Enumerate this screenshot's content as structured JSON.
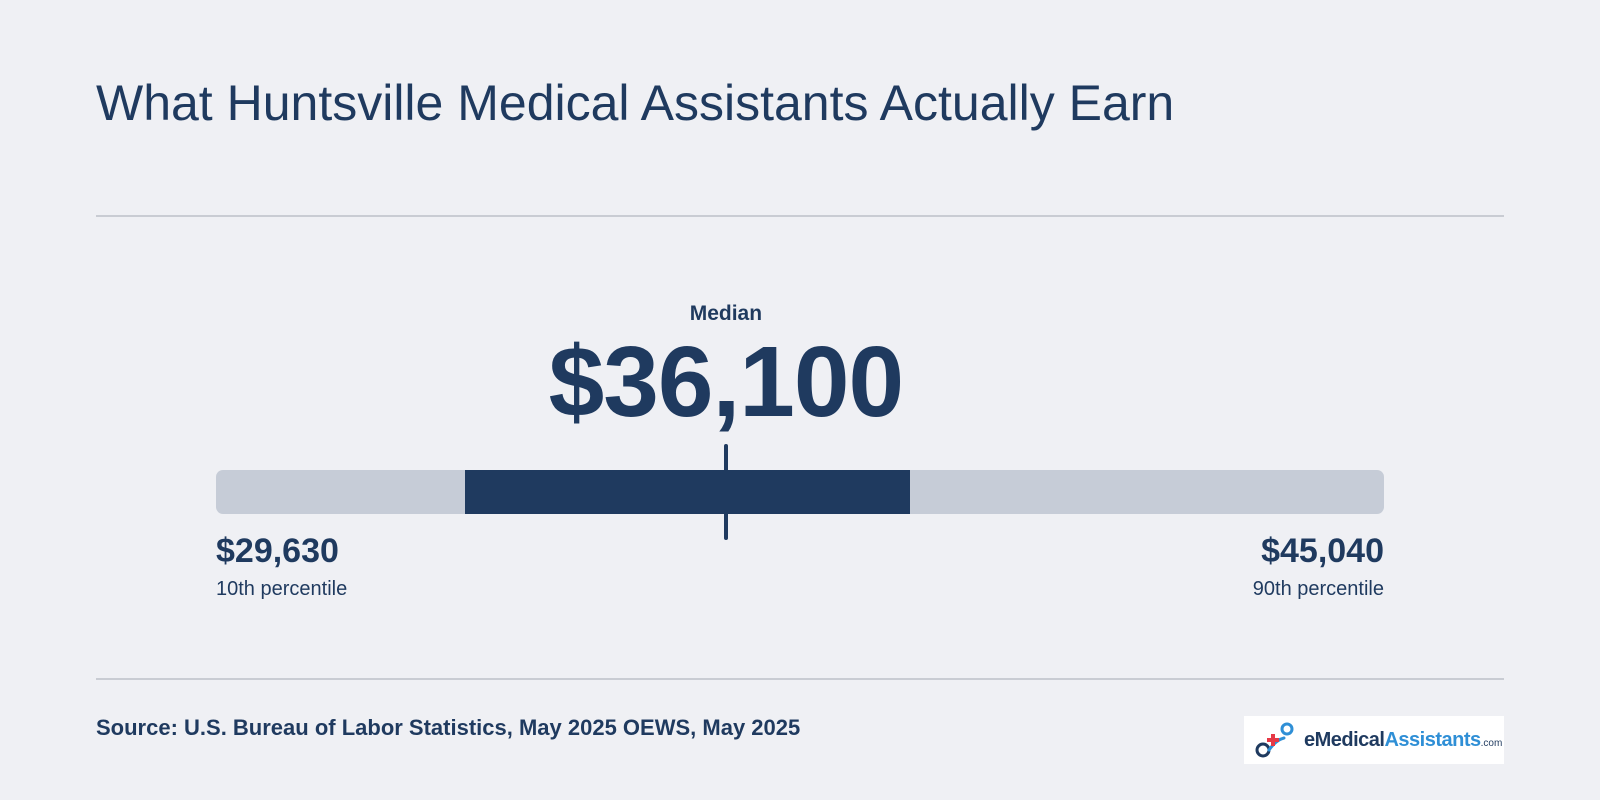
{
  "title": "What Huntsville Medical Assistants Actually Earn",
  "chart_data": {
    "type": "range",
    "unit": "USD annual wage",
    "median": {
      "label": "Median",
      "value": 36100,
      "display": "$36,100"
    },
    "p10": {
      "label": "10th percentile",
      "value": 29630,
      "display": "$29,630"
    },
    "p90": {
      "label": "90th percentile",
      "value": 45040,
      "display": "$45,040"
    },
    "p25": 31700,
    "p75": 39200,
    "scale": [
      27500,
      47200
    ]
  },
  "source": "Source: U.S. Bureau of Labor Statistics, May 2025 OEWS, May 2025",
  "logo": {
    "text_e": "e",
    "text_medical": "Medical",
    "text_assistants": "Assistants",
    "text_dotcom": ".com"
  },
  "colors": {
    "background": "#eff0f4",
    "primary": "#1f3a5f",
    "track": "#c6ccd7",
    "accent_red": "#e63946",
    "accent_blue": "#2f8fd6"
  }
}
